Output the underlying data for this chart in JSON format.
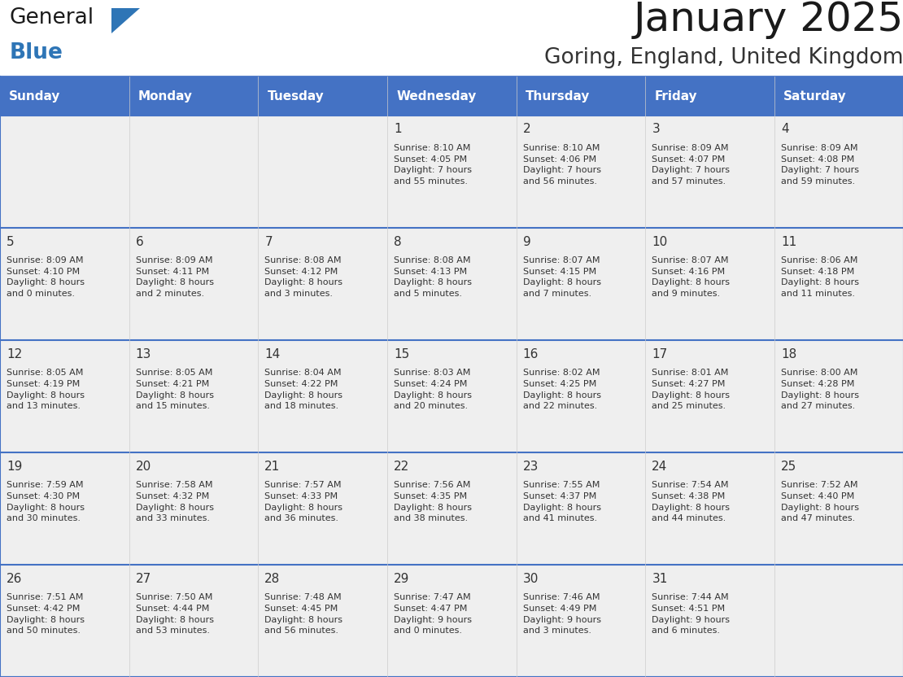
{
  "title": "January 2025",
  "subtitle": "Goring, England, United Kingdom",
  "header_color": "#4472C4",
  "header_text_color": "#FFFFFF",
  "days_of_week": [
    "Sunday",
    "Monday",
    "Tuesday",
    "Wednesday",
    "Thursday",
    "Friday",
    "Saturday"
  ],
  "cell_bg_color": "#EFEFEF",
  "border_color": "#4472C4",
  "text_color": "#333333",
  "day_num_color": "#333333",
  "title_color": "#1a1a1a",
  "subtitle_color": "#333333",
  "logo_general_color": "#1a1a1a",
  "logo_blue_color": "#2E75B6",
  "calendar_data": [
    [
      {
        "day": "",
        "info": ""
      },
      {
        "day": "",
        "info": ""
      },
      {
        "day": "",
        "info": ""
      },
      {
        "day": "1",
        "info": "Sunrise: 8:10 AM\nSunset: 4:05 PM\nDaylight: 7 hours\nand 55 minutes."
      },
      {
        "day": "2",
        "info": "Sunrise: 8:10 AM\nSunset: 4:06 PM\nDaylight: 7 hours\nand 56 minutes."
      },
      {
        "day": "3",
        "info": "Sunrise: 8:09 AM\nSunset: 4:07 PM\nDaylight: 7 hours\nand 57 minutes."
      },
      {
        "day": "4",
        "info": "Sunrise: 8:09 AM\nSunset: 4:08 PM\nDaylight: 7 hours\nand 59 minutes."
      }
    ],
    [
      {
        "day": "5",
        "info": "Sunrise: 8:09 AM\nSunset: 4:10 PM\nDaylight: 8 hours\nand 0 minutes."
      },
      {
        "day": "6",
        "info": "Sunrise: 8:09 AM\nSunset: 4:11 PM\nDaylight: 8 hours\nand 2 minutes."
      },
      {
        "day": "7",
        "info": "Sunrise: 8:08 AM\nSunset: 4:12 PM\nDaylight: 8 hours\nand 3 minutes."
      },
      {
        "day": "8",
        "info": "Sunrise: 8:08 AM\nSunset: 4:13 PM\nDaylight: 8 hours\nand 5 minutes."
      },
      {
        "day": "9",
        "info": "Sunrise: 8:07 AM\nSunset: 4:15 PM\nDaylight: 8 hours\nand 7 minutes."
      },
      {
        "day": "10",
        "info": "Sunrise: 8:07 AM\nSunset: 4:16 PM\nDaylight: 8 hours\nand 9 minutes."
      },
      {
        "day": "11",
        "info": "Sunrise: 8:06 AM\nSunset: 4:18 PM\nDaylight: 8 hours\nand 11 minutes."
      }
    ],
    [
      {
        "day": "12",
        "info": "Sunrise: 8:05 AM\nSunset: 4:19 PM\nDaylight: 8 hours\nand 13 minutes."
      },
      {
        "day": "13",
        "info": "Sunrise: 8:05 AM\nSunset: 4:21 PM\nDaylight: 8 hours\nand 15 minutes."
      },
      {
        "day": "14",
        "info": "Sunrise: 8:04 AM\nSunset: 4:22 PM\nDaylight: 8 hours\nand 18 minutes."
      },
      {
        "day": "15",
        "info": "Sunrise: 8:03 AM\nSunset: 4:24 PM\nDaylight: 8 hours\nand 20 minutes."
      },
      {
        "day": "16",
        "info": "Sunrise: 8:02 AM\nSunset: 4:25 PM\nDaylight: 8 hours\nand 22 minutes."
      },
      {
        "day": "17",
        "info": "Sunrise: 8:01 AM\nSunset: 4:27 PM\nDaylight: 8 hours\nand 25 minutes."
      },
      {
        "day": "18",
        "info": "Sunrise: 8:00 AM\nSunset: 4:28 PM\nDaylight: 8 hours\nand 27 minutes."
      }
    ],
    [
      {
        "day": "19",
        "info": "Sunrise: 7:59 AM\nSunset: 4:30 PM\nDaylight: 8 hours\nand 30 minutes."
      },
      {
        "day": "20",
        "info": "Sunrise: 7:58 AM\nSunset: 4:32 PM\nDaylight: 8 hours\nand 33 minutes."
      },
      {
        "day": "21",
        "info": "Sunrise: 7:57 AM\nSunset: 4:33 PM\nDaylight: 8 hours\nand 36 minutes."
      },
      {
        "day": "22",
        "info": "Sunrise: 7:56 AM\nSunset: 4:35 PM\nDaylight: 8 hours\nand 38 minutes."
      },
      {
        "day": "23",
        "info": "Sunrise: 7:55 AM\nSunset: 4:37 PM\nDaylight: 8 hours\nand 41 minutes."
      },
      {
        "day": "24",
        "info": "Sunrise: 7:54 AM\nSunset: 4:38 PM\nDaylight: 8 hours\nand 44 minutes."
      },
      {
        "day": "25",
        "info": "Sunrise: 7:52 AM\nSunset: 4:40 PM\nDaylight: 8 hours\nand 47 minutes."
      }
    ],
    [
      {
        "day": "26",
        "info": "Sunrise: 7:51 AM\nSunset: 4:42 PM\nDaylight: 8 hours\nand 50 minutes."
      },
      {
        "day": "27",
        "info": "Sunrise: 7:50 AM\nSunset: 4:44 PM\nDaylight: 8 hours\nand 53 minutes."
      },
      {
        "day": "28",
        "info": "Sunrise: 7:48 AM\nSunset: 4:45 PM\nDaylight: 8 hours\nand 56 minutes."
      },
      {
        "day": "29",
        "info": "Sunrise: 7:47 AM\nSunset: 4:47 PM\nDaylight: 9 hours\nand 0 minutes."
      },
      {
        "day": "30",
        "info": "Sunrise: 7:46 AM\nSunset: 4:49 PM\nDaylight: 9 hours\nand 3 minutes."
      },
      {
        "day": "31",
        "info": "Sunrise: 7:44 AM\nSunset: 4:51 PM\nDaylight: 9 hours\nand 6 minutes."
      },
      {
        "day": "",
        "info": ""
      }
    ]
  ]
}
